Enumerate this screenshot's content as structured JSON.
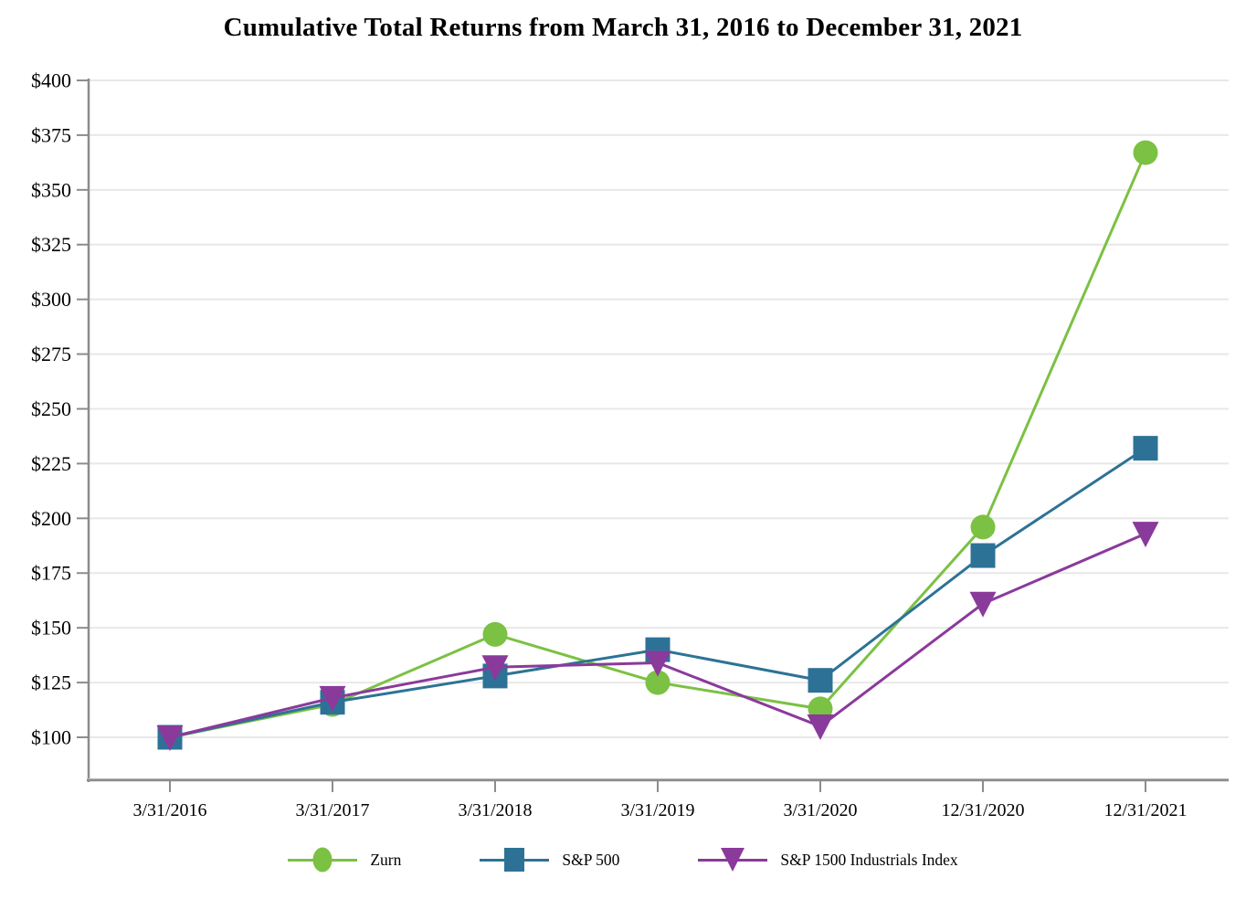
{
  "title": "Cumulative Total Returns from March 31, 2016 to December 31, 2021",
  "chart_data": {
    "type": "line",
    "title": "Cumulative Total Returns from March 31, 2016 to December 31, 2021",
    "categories": [
      "3/31/2016",
      "3/31/2017",
      "3/31/2018",
      "3/31/2019",
      "3/31/2020",
      "12/31/2020",
      "12/31/2021"
    ],
    "series": [
      {
        "name": "Zurn",
        "marker": "circle",
        "color": "#7bc143",
        "values": [
          100,
          115,
          147,
          125,
          113,
          196,
          367
        ]
      },
      {
        "name": "S&P 500",
        "marker": "square",
        "color": "#2d7296",
        "values": [
          100,
          116,
          128,
          140,
          126,
          183,
          232
        ]
      },
      {
        "name": "S&P 1500 Industrials Index",
        "marker": "triangle-down",
        "color": "#8a3a9b",
        "values": [
          100,
          118,
          132,
          134,
          105,
          161,
          193
        ]
      }
    ],
    "xlabel": "",
    "ylabel": "",
    "y_tick_prefix": "$",
    "y_tick_min": 100,
    "y_tick_max": 400,
    "y_tick_step": 25,
    "ylim": [
      80,
      405
    ],
    "grid": true,
    "legend_position": "bottom",
    "colors": {
      "gridline": "#e8e8e8",
      "axis": "#8c8c8c",
      "tick_label": "#000000"
    }
  }
}
